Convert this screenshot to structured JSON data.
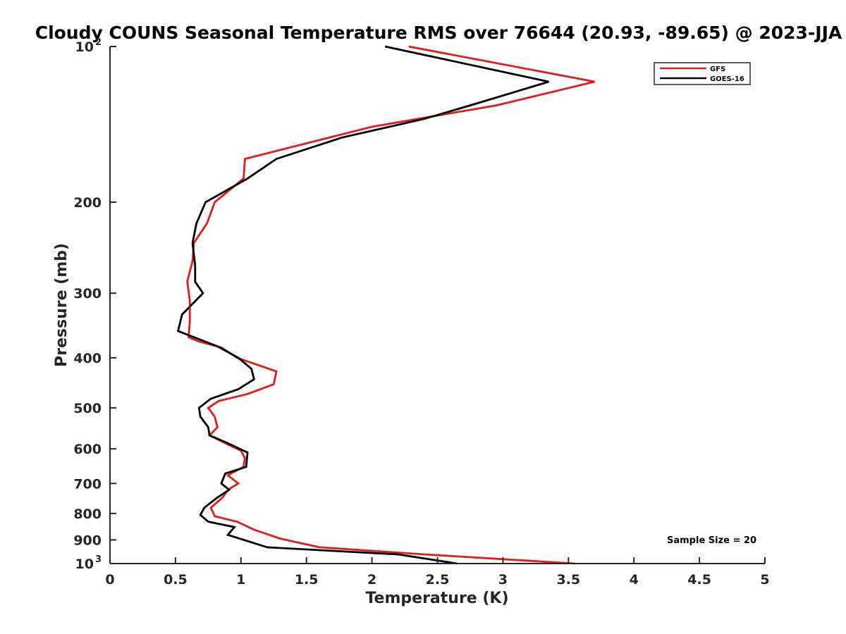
{
  "chart_data": {
    "type": "line",
    "title": "Cloudy COUNS Seasonal Temperature RMS over 76644 (20.93, -89.65) @ 2023-JJA",
    "xlabel": "Temperature (K)",
    "ylabel": "Pressure (mb)",
    "xlim": [
      0,
      5
    ],
    "ylim": [
      100,
      1000
    ],
    "y_scale": "log",
    "y_reversed": true,
    "x_ticks": [
      "0",
      "0.5",
      "1",
      "1.5",
      "2",
      "2.5",
      "3",
      "3.5",
      "4",
      "4.5",
      "5"
    ],
    "y_ticks": [
      {
        "value": 100,
        "label": "10",
        "exp": "2"
      },
      {
        "value": 200,
        "label": "200"
      },
      {
        "value": 300,
        "label": "300"
      },
      {
        "value": 400,
        "label": "400"
      },
      {
        "value": 500,
        "label": "500"
      },
      {
        "value": 600,
        "label": "600"
      },
      {
        "value": 700,
        "label": "700"
      },
      {
        "value": 800,
        "label": "800"
      },
      {
        "value": 900,
        "label": "900"
      },
      {
        "value": 1000,
        "label": "10",
        "exp": "3"
      }
    ],
    "grid": false,
    "legend_position": "top-right",
    "annotation": "Sample Size = 20",
    "series": [
      {
        "name": "GFS",
        "color": "#e41a1c",
        "points": [
          [
            2.28,
            100
          ],
          [
            3.7,
            117
          ],
          [
            2.95,
            130
          ],
          [
            2.0,
            143
          ],
          [
            1.03,
            165
          ],
          [
            1.02,
            180
          ],
          [
            0.8,
            200
          ],
          [
            0.74,
            220
          ],
          [
            0.64,
            240
          ],
          [
            0.63,
            260
          ],
          [
            0.59,
            285
          ],
          [
            0.61,
            310
          ],
          [
            0.61,
            340
          ],
          [
            0.6,
            365
          ],
          [
            0.68,
            372
          ],
          [
            0.85,
            382
          ],
          [
            0.97,
            400
          ],
          [
            1.27,
            425
          ],
          [
            1.25,
            450
          ],
          [
            1.05,
            470
          ],
          [
            0.83,
            485
          ],
          [
            0.75,
            500
          ],
          [
            0.8,
            520
          ],
          [
            0.82,
            545
          ],
          [
            0.76,
            565
          ],
          [
            0.88,
            585
          ],
          [
            1.0,
            605
          ],
          [
            1.03,
            625
          ],
          [
            1.02,
            650
          ],
          [
            0.9,
            675
          ],
          [
            0.98,
            700
          ],
          [
            0.9,
            720
          ],
          [
            0.86,
            745
          ],
          [
            0.77,
            780
          ],
          [
            0.8,
            810
          ],
          [
            0.97,
            830
          ],
          [
            1.1,
            860
          ],
          [
            1.3,
            895
          ],
          [
            1.6,
            930
          ],
          [
            2.4,
            960
          ],
          [
            3.55,
            1000
          ]
        ]
      },
      {
        "name": "GOES-16",
        "color": "#000000",
        "points": [
          [
            2.1,
            100
          ],
          [
            3.35,
            117
          ],
          [
            2.75,
            130
          ],
          [
            2.4,
            138
          ],
          [
            1.77,
            150
          ],
          [
            1.27,
            165
          ],
          [
            1.05,
            180
          ],
          [
            0.73,
            200
          ],
          [
            0.66,
            220
          ],
          [
            0.63,
            240
          ],
          [
            0.65,
            265
          ],
          [
            0.65,
            285
          ],
          [
            0.71,
            300
          ],
          [
            0.55,
            330
          ],
          [
            0.52,
            355
          ],
          [
            0.82,
            380
          ],
          [
            0.98,
            400
          ],
          [
            1.08,
            420
          ],
          [
            1.1,
            440
          ],
          [
            0.98,
            460
          ],
          [
            0.77,
            480
          ],
          [
            0.68,
            500
          ],
          [
            0.69,
            520
          ],
          [
            0.75,
            545
          ],
          [
            0.76,
            565
          ],
          [
            0.9,
            585
          ],
          [
            1.05,
            610
          ],
          [
            1.04,
            650
          ],
          [
            0.88,
            670
          ],
          [
            0.85,
            700
          ],
          [
            0.91,
            720
          ],
          [
            0.82,
            745
          ],
          [
            0.72,
            780
          ],
          [
            0.69,
            805
          ],
          [
            0.75,
            830
          ],
          [
            0.95,
            850
          ],
          [
            0.9,
            880
          ],
          [
            1.2,
            930
          ],
          [
            2.2,
            960
          ],
          [
            2.65,
            1000
          ]
        ]
      }
    ]
  }
}
